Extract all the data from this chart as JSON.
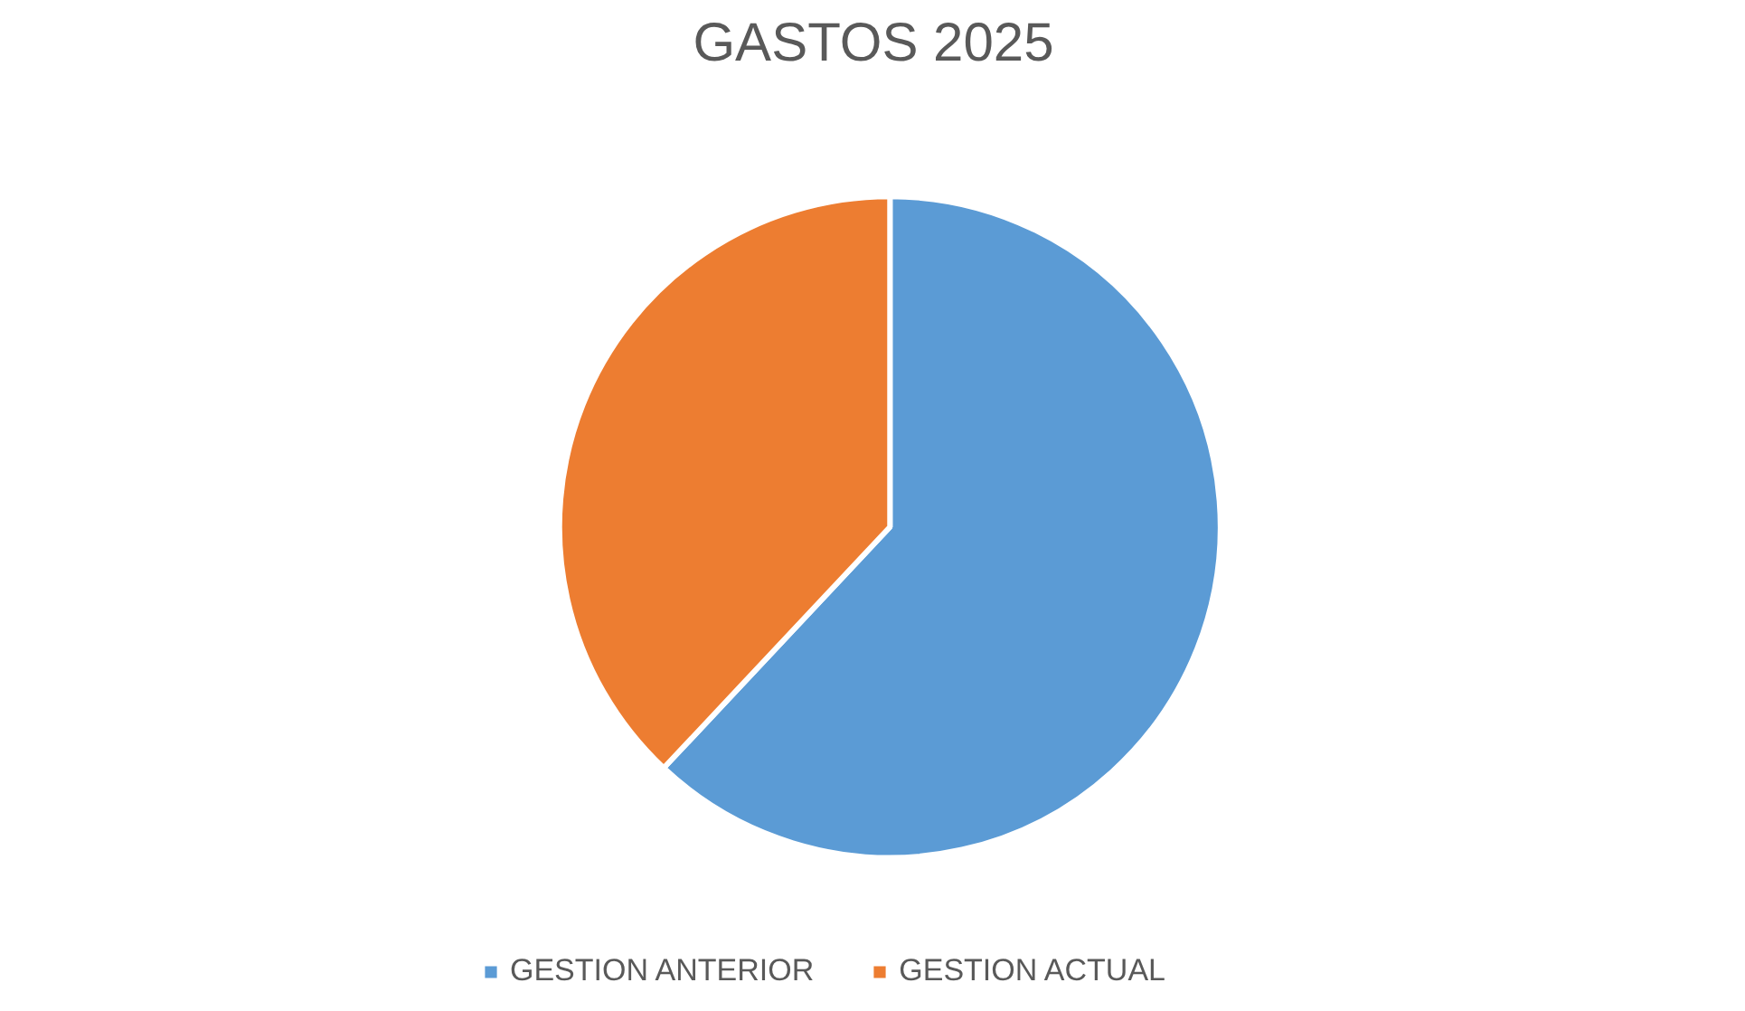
{
  "chart_data": {
    "type": "pie",
    "title": "GASTOS 2025",
    "categories": [
      "GESTION ANTERIOR",
      "GESTION ACTUAL"
    ],
    "values": [
      62,
      38
    ],
    "colors": [
      "#5b9bd5",
      "#ed7d31"
    ],
    "legend": "bottom"
  }
}
